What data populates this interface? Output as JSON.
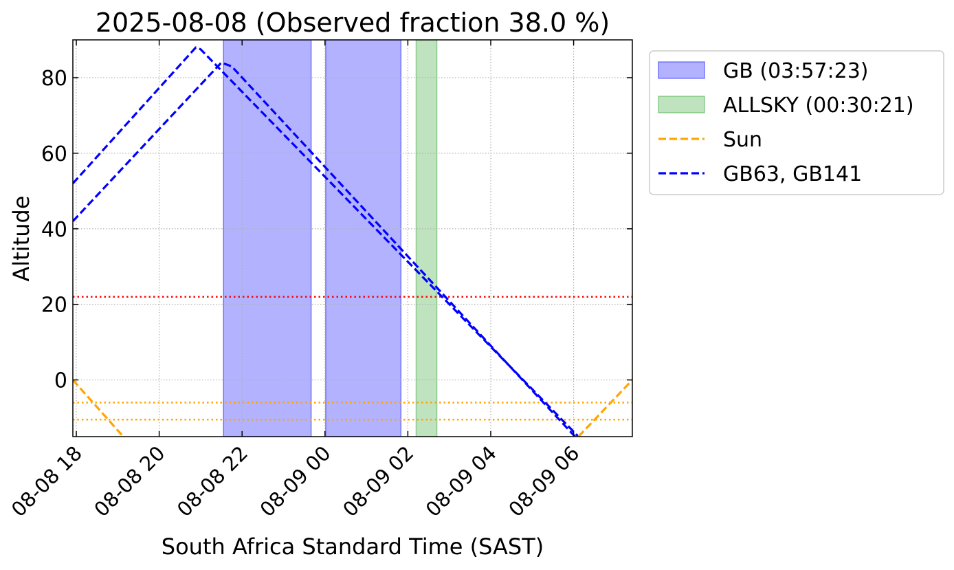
{
  "chart_data": {
    "type": "line",
    "title": "2025-08-08 (Observed fraction 38.0 %)",
    "xlabel": "South Africa Standard Time (SAST)",
    "ylabel": "Altitude",
    "xlim": [
      "2025-08-08 17:55",
      "2025-08-09 07:25"
    ],
    "ylim": [
      -15,
      90
    ],
    "grid": true,
    "legend_position": "outside-right",
    "x_ticks": [
      {
        "t": "2025-08-08 18:00",
        "label": "08-08 18"
      },
      {
        "t": "2025-08-08 20:00",
        "label": "08-08 20"
      },
      {
        "t": "2025-08-08 22:00",
        "label": "08-08 22"
      },
      {
        "t": "2025-08-09 00:00",
        "label": "08-09 00"
      },
      {
        "t": "2025-08-09 02:00",
        "label": "08-09 02"
      },
      {
        "t": "2025-08-09 04:00",
        "label": "08-09 04"
      },
      {
        "t": "2025-08-09 06:00",
        "label": "08-09 06"
      }
    ],
    "y_ticks": [
      {
        "v": 0,
        "label": "0"
      },
      {
        "v": 20,
        "label": "20"
      },
      {
        "v": 40,
        "label": "40"
      },
      {
        "v": 60,
        "label": "60"
      },
      {
        "v": 80,
        "label": "80"
      }
    ],
    "spans": [
      {
        "group": "GB",
        "start": "2025-08-08 21:33",
        "end": "2025-08-08 23:40",
        "color": "#0000ff"
      },
      {
        "group": "GB",
        "start": "2025-08-09 00:01",
        "end": "2025-08-09 01:50",
        "color": "#0000ff"
      },
      {
        "group": "ALLSKY",
        "start": "2025-08-09 02:12",
        "end": "2025-08-09 02:42",
        "color": "#2ca02c"
      }
    ],
    "hlines": [
      {
        "y": 22,
        "color": "#ff0000",
        "style": "dotted"
      },
      {
        "y": -6,
        "color": "#ffa500",
        "style": "dotted"
      },
      {
        "y": -10.5,
        "color": "#ffa500",
        "style": "dotted"
      }
    ],
    "series": [
      {
        "group": "Sun",
        "color": "#ffa500",
        "points": [
          [
            "2025-08-08 17:55",
            0
          ],
          [
            "2025-08-08 19:08",
            -15
          ]
        ]
      },
      {
        "group": "GB63, GB141",
        "color": "#0000ff",
        "points": [
          [
            "2025-08-08 17:55",
            52
          ],
          [
            "2025-08-08 20:53",
            88
          ],
          [
            "2025-08-08 21:00",
            87.5
          ],
          [
            "2025-08-09 06:07",
            -15
          ]
        ]
      },
      {
        "group": "GB63, GB141",
        "color": "#0000ff",
        "points": [
          [
            "2025-08-08 17:55",
            42
          ],
          [
            "2025-08-08 21:30",
            84
          ],
          [
            "2025-08-08 21:45",
            83
          ],
          [
            "2025-08-09 06:02",
            -15
          ]
        ]
      },
      {
        "group": "Sun",
        "color": "#ffa500",
        "points": [
          [
            "2025-08-09 06:07",
            -15
          ],
          [
            "2025-08-09 07:25",
            0
          ]
        ]
      }
    ],
    "legend": [
      {
        "label": "GB (03:57:23)",
        "kind": "patch",
        "color": "#0000ff"
      },
      {
        "label": "ALLSKY (00:30:21)",
        "kind": "patch",
        "color": "#2ca02c"
      },
      {
        "label": "Sun",
        "kind": "line",
        "color": "#ffa500"
      },
      {
        "label": "GB63, GB141",
        "kind": "line",
        "color": "#0000ff"
      }
    ]
  }
}
